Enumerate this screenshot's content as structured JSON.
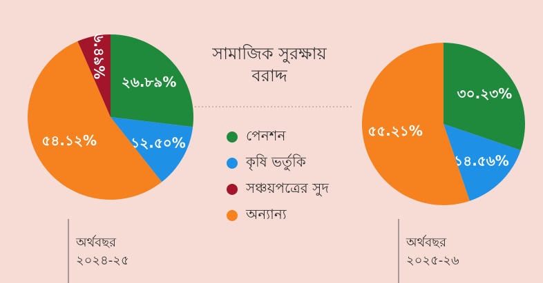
{
  "title_line1": "সামাজিক সুরক্ষায়",
  "title_line2": "বরাদ্দ",
  "legend": [
    {
      "label": "পেনশন",
      "color": "#1f8a3b"
    },
    {
      "label": "কৃষি ভর্তুকি",
      "color": "#1e90e6"
    },
    {
      "label": "সঞ্চয়পত্রের সুদ",
      "color": "#a3162a"
    },
    {
      "label": "অন্যান্য",
      "color": "#f5821f"
    }
  ],
  "chart_data": [
    {
      "type": "pie",
      "period_label": "অর্থবছর",
      "period": "২০২৪-২৫",
      "slices": [
        {
          "category": "পেনশন",
          "value": 26.89,
          "label": "২৬.৮৯%",
          "color": "#1f8a3b"
        },
        {
          "category": "কৃষি ভর্তুকি",
          "value": 12.5,
          "label": "১২.৫০%",
          "color": "#1e90e6"
        },
        {
          "category": "অন্যান্য",
          "value": 54.12,
          "label": "৫৪.১২%",
          "color": "#f5821f"
        },
        {
          "category": "সঞ্চয়পত্রের সুদ",
          "value": 6.49,
          "label": "৬.৪৯%",
          "color": "#a3162a"
        }
      ]
    },
    {
      "type": "pie",
      "period_label": "অর্থবছর",
      "period": "২০২৫-২৬",
      "slices": [
        {
          "category": "পেনশন",
          "value": 30.23,
          "label": "৩০.২৩%",
          "color": "#1f8a3b"
        },
        {
          "category": "কৃষি ভর্তুকি",
          "value": 14.56,
          "label": "১৪.৫৬%",
          "color": "#1e90e6"
        },
        {
          "category": "অন্যান্য",
          "value": 55.21,
          "label": "৫৫.২১%",
          "color": "#f5821f"
        }
      ]
    }
  ]
}
